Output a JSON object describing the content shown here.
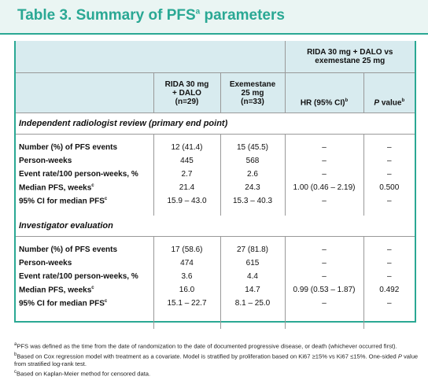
{
  "title": {
    "text": "Table 3. Summary of PFS",
    "sup": "a",
    "suffix": " parameters"
  },
  "table": {
    "group_header": "RIDA 30 mg + DALO vs exemestane 25 mg",
    "columns": [
      {
        "lines": [
          "RIDA 30 mg",
          "+ DALO",
          "(n=29)"
        ]
      },
      {
        "lines": [
          "Exemestane",
          "25 mg",
          "(n=33)"
        ]
      },
      {
        "lines": [
          "HR (95% CI)"
        ],
        "sup": "b"
      },
      {
        "lines": [
          "P"
        ],
        "suffix": " value",
        "sup": "b"
      }
    ],
    "sections": [
      {
        "title": "Independent radiologist review (primary end point)",
        "rows": [
          {
            "label": "Number (%) of PFS events",
            "cells": [
              "12 (41.4)",
              "15 (45.5)",
              "–",
              "–"
            ]
          },
          {
            "label": "Person-weeks",
            "cells": [
              "445",
              "568",
              "–",
              "–"
            ]
          },
          {
            "label": "Event rate/100 person-weeks, %",
            "cells": [
              "2.7",
              "2.6",
              "–",
              "–"
            ]
          },
          {
            "label": "Median PFS, weeks",
            "sup": "c",
            "cells": [
              "21.4",
              "24.3",
              "1.00 (0.46 – 2.19)",
              "0.500"
            ]
          },
          {
            "label": "95% CI for median PFS",
            "sup": "c",
            "cells": [
              "15.9 – 43.0",
              "15.3 – 40.3",
              "–",
              "–"
            ]
          }
        ]
      },
      {
        "title": "Investigator evaluation",
        "rows": [
          {
            "label": "Number (%) of PFS events",
            "cells": [
              "17 (58.6)",
              "27 (81.8)",
              "–",
              "–"
            ]
          },
          {
            "label": "Person-weeks",
            "cells": [
              "474",
              "615",
              "–",
              "–"
            ]
          },
          {
            "label": "Event rate/100 person-weeks, %",
            "cells": [
              "3.6",
              "4.4",
              "–",
              "–"
            ]
          },
          {
            "label": "Median PFS, weeks",
            "sup": "c",
            "cells": [
              "16.0",
              "14.7",
              "0.99 (0.53 – 1.87)",
              "0.492"
            ]
          },
          {
            "label": "95% CI for median PFS",
            "sup": "c",
            "cells": [
              "15.1 – 22.7",
              "8.1 – 25.0",
              "–",
              "–"
            ]
          }
        ]
      }
    ]
  },
  "footnotes": [
    {
      "sup": "a",
      "text": "PFS was defined as the time from the date of randomization to the date of documented progressive disease, or death (whichever occurred first)."
    },
    {
      "sup": "b",
      "text": "Based on Cox regression model with treatment as a covariate. Model is stratified by proliferation based on Ki67 ≥15% vs Ki67 ≤15%. One-sided ",
      "italic": "P",
      "rest": " value from stratified log-rank test."
    },
    {
      "sup": "c",
      "text": "Based on Kaplan-Meier method for censored data."
    }
  ]
}
